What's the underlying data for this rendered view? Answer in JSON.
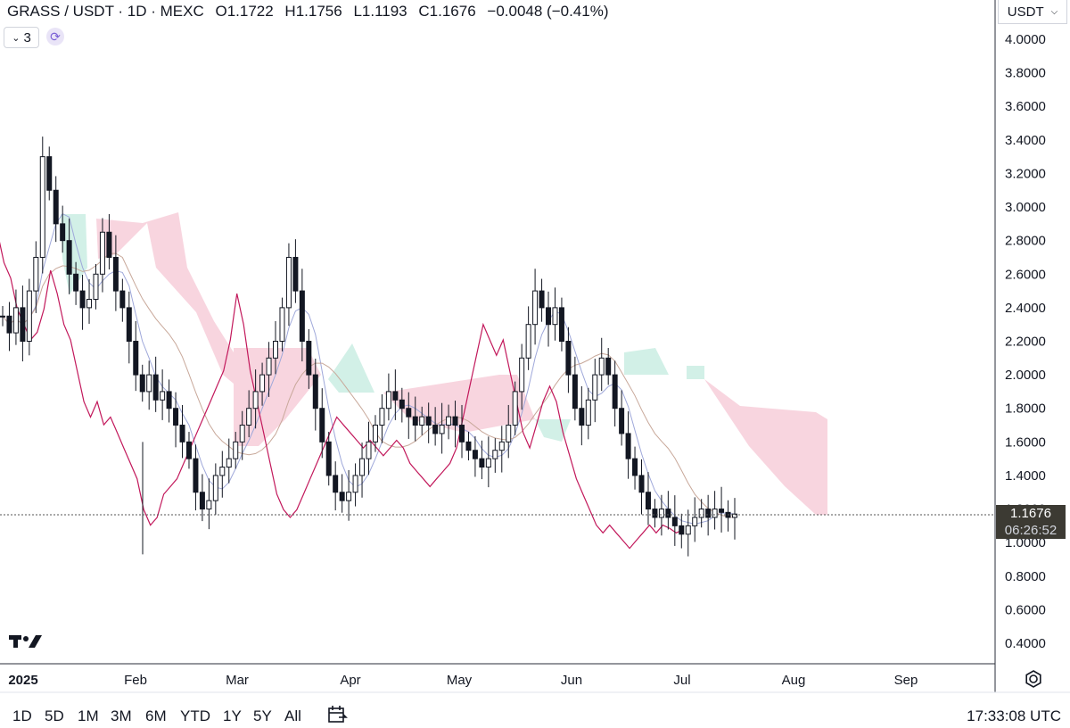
{
  "header": {
    "symbol": "GRASS / USDT · 1D · MEXC",
    "open_label": "O",
    "open": "1.1722",
    "high_label": "H",
    "high": "1.1756",
    "low_label": "L",
    "low": "1.1193",
    "close_label": "C",
    "close": "1.1676",
    "change": "−0.0048 (−0.41%)"
  },
  "toolbar": {
    "indicators_count": "3",
    "unit": "USDT"
  },
  "price_badge": {
    "price": "1.1676",
    "countdown": "06:26:52"
  },
  "time_ranges": [
    "1D",
    "5D",
    "1M",
    "3M",
    "6M",
    "YTD",
    "1Y",
    "5Y",
    "All"
  ],
  "clock": "17:33:08 UTC",
  "icons": {
    "logo": "tradingview-logo-icon",
    "sync": "sync-icon",
    "calendar": "calendar-range-icon",
    "settings": "settings-gear-icon",
    "chevron": "chevron-down-icon"
  },
  "colors": {
    "up_cloud": "#cdeee4",
    "down_cloud": "#f7d0db",
    "lagging_span": "#c2185b",
    "conversion": "#9fa8da",
    "base": "#c8a89a",
    "candle": "#131722"
  },
  "chart_data": {
    "type": "candlestick",
    "ylim": [
      0.3,
      4.2
    ],
    "y_ticks": [
      "4.0000",
      "3.8000",
      "3.6000",
      "3.4000",
      "3.2000",
      "3.0000",
      "2.8000",
      "2.6000",
      "2.4000",
      "2.2000",
      "2.0000",
      "1.8000",
      "1.6000",
      "1.4000",
      "1.2000",
      "1.0000",
      "0.8000",
      "0.6000",
      "0.4000"
    ],
    "x_ticks": [
      "2025",
      "Feb",
      "Mar",
      "Apr",
      "May",
      "Jun",
      "Jul",
      "Aug",
      "Sep"
    ],
    "last_price": 1.1676,
    "close_series": [
      2.35,
      2.25,
      2.4,
      2.2,
      2.5,
      2.7,
      3.3,
      3.1,
      2.9,
      2.8,
      2.6,
      2.5,
      2.4,
      2.45,
      2.6,
      2.85,
      2.7,
      2.5,
      2.4,
      2.2,
      2.0,
      1.9,
      2.0,
      1.85,
      1.9,
      1.8,
      1.7,
      1.6,
      1.5,
      1.3,
      1.2,
      1.25,
      1.4,
      1.45,
      1.5,
      1.6,
      1.7,
      1.8,
      1.9,
      2.0,
      2.1,
      2.2,
      2.4,
      2.7,
      2.5,
      2.2,
      2.0,
      1.8,
      1.6,
      1.4,
      1.3,
      1.25,
      1.3,
      1.4,
      1.5,
      1.6,
      1.7,
      1.8,
      1.9,
      1.85,
      1.8,
      1.75,
      1.7,
      1.75,
      1.7,
      1.65,
      1.7,
      1.75,
      1.7,
      1.6,
      1.55,
      1.5,
      1.45,
      1.5,
      1.55,
      1.6,
      1.7,
      1.9,
      2.1,
      2.3,
      2.5,
      2.4,
      2.3,
      2.4,
      2.2,
      2.0,
      1.8,
      1.7,
      1.85,
      2.0,
      2.1,
      2.0,
      1.8,
      1.65,
      1.5,
      1.4,
      1.3,
      1.2,
      1.15,
      1.2,
      1.15,
      1.1,
      1.05,
      1.1,
      1.15,
      1.2,
      1.15,
      1.2,
      1.18,
      1.15,
      1.17
    ],
    "up_cloud_regions": [
      {
        "from": "Jan",
        "to": "Jan"
      },
      {
        "from": "Apr",
        "to": "Apr"
      },
      {
        "from": "Jun",
        "to": "Jul"
      }
    ],
    "down_cloud_regions": [
      {
        "from": "Jan",
        "to": "Mar"
      },
      {
        "from": "Mar",
        "to": "Apr"
      },
      {
        "from": "Apr",
        "to": "Jun"
      },
      {
        "from": "Jul",
        "to": "Aug"
      }
    ]
  }
}
